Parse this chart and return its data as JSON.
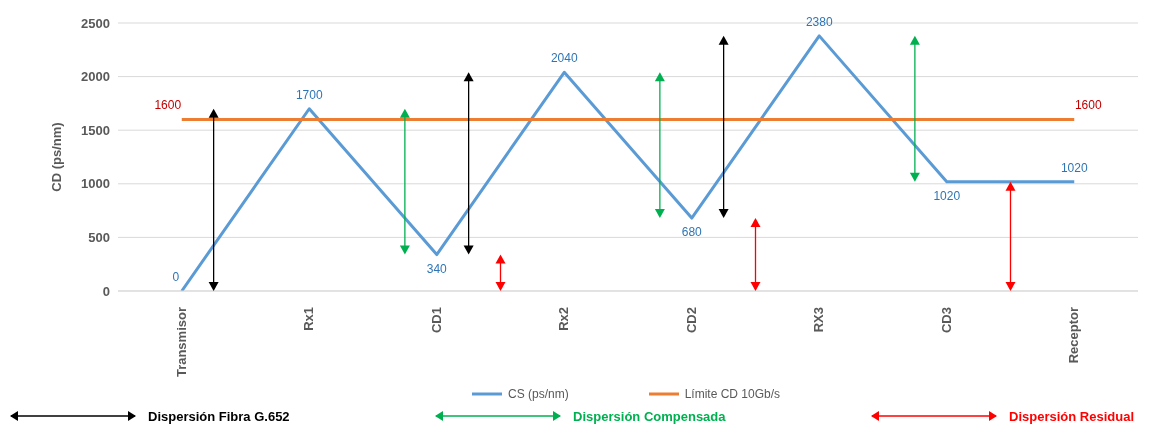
{
  "chart_data": {
    "type": "line",
    "ylabel": "CD (ps/nm)",
    "categories": [
      "Transmisor",
      "Rx1",
      "CD1",
      "Rx2",
      "CD2",
      "RX3",
      "CD3",
      "Receptor"
    ],
    "series": [
      {
        "name": "CS (ps/nm)",
        "color": "#5b9bd5",
        "values": [
          0,
          1700,
          340,
          2040,
          680,
          2380,
          1020,
          1020
        ],
        "value_labels": [
          "0",
          "1700",
          "340",
          "2040",
          "680",
          "2380",
          "1020",
          "1020"
        ]
      },
      {
        "name": "Límite CD 10Gb/s",
        "color": "#ed7d31",
        "values": [
          1600,
          1600,
          1600,
          1600,
          1600,
          1600,
          1600,
          1600
        ],
        "value_labels": [
          "1600",
          null,
          null,
          null,
          null,
          null,
          null,
          "1600"
        ]
      }
    ],
    "ylim": [
      0,
      2500
    ],
    "yticks": [
      0,
      500,
      1000,
      1500,
      2000,
      2500
    ],
    "grid": "y",
    "legend": "bottom",
    "marker": "none",
    "line_style": "solid",
    "annotations": [
      "Dispersión Fibra G.652",
      "Dispersión Compensada",
      "Dispersión Residual"
    ]
  }
}
